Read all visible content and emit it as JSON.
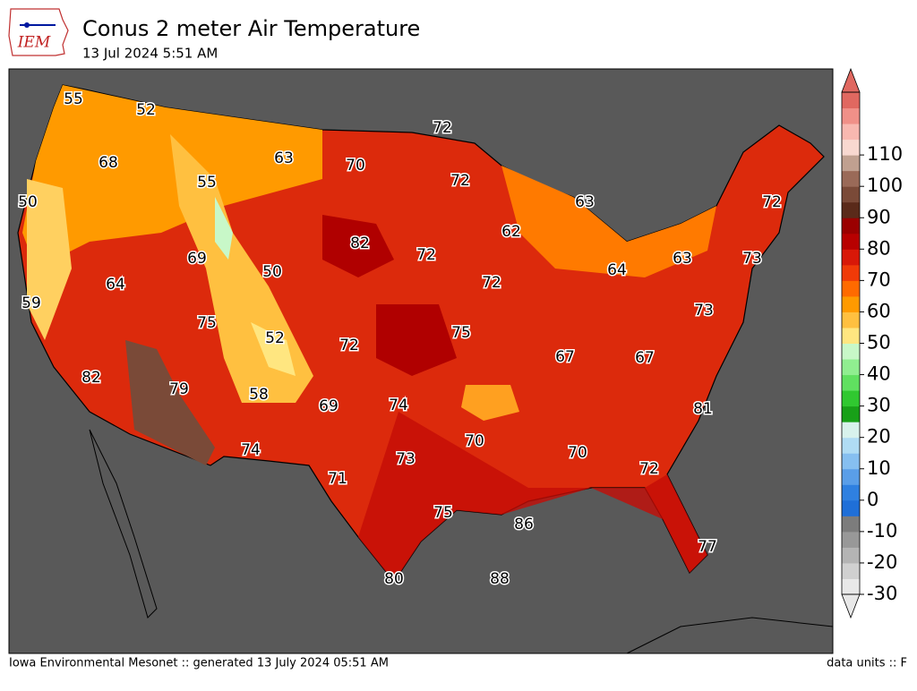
{
  "header": {
    "logo": "IEM",
    "title": "Conus 2 meter Air Temperature",
    "subtitle": "13 Jul 2024 5:51 AM"
  },
  "map": {
    "station_values": [
      55,
      52,
      72,
      68,
      63,
      70,
      72,
      55,
      63,
      50,
      72,
      62,
      82,
      72,
      69,
      50,
      63,
      73,
      64,
      64,
      72,
      59,
      73,
      75,
      75,
      52,
      72,
      67,
      67,
      82,
      79,
      58,
      69,
      74,
      81,
      70,
      70,
      74,
      73,
      72,
      71,
      75,
      86,
      77,
      80,
      88
    ]
  },
  "colorbar": {
    "ticks": [
      -30,
      -20,
      -10,
      0,
      10,
      20,
      30,
      40,
      50,
      60,
      70,
      80,
      90,
      100,
      110
    ],
    "colors": [
      "#e8e8e8",
      "#d0d0d0",
      "#b4b4b4",
      "#989898",
      "#7c7c7c",
      "#1f6fd8",
      "#2f80e0",
      "#5a9ee8",
      "#86bff0",
      "#b0dcf4",
      "#d8f2ec",
      "#18a018",
      "#30c830",
      "#60e060",
      "#90ee90",
      "#c8f8c8",
      "#ffe680",
      "#ffc040",
      "#ff9a00",
      "#ff6a00",
      "#f03a08",
      "#d81808",
      "#b80000",
      "#9a0000",
      "#5a2a1a",
      "#7a4a38",
      "#9a6a58",
      "#c0a090",
      "#f8d8d0",
      "#f8b8b0",
      "#f09088",
      "#e06860"
    ]
  },
  "footer": {
    "left": "Iowa Environmental Mesonet :: generated 13 July 2024 05:51 AM",
    "right": "data units :: F"
  }
}
